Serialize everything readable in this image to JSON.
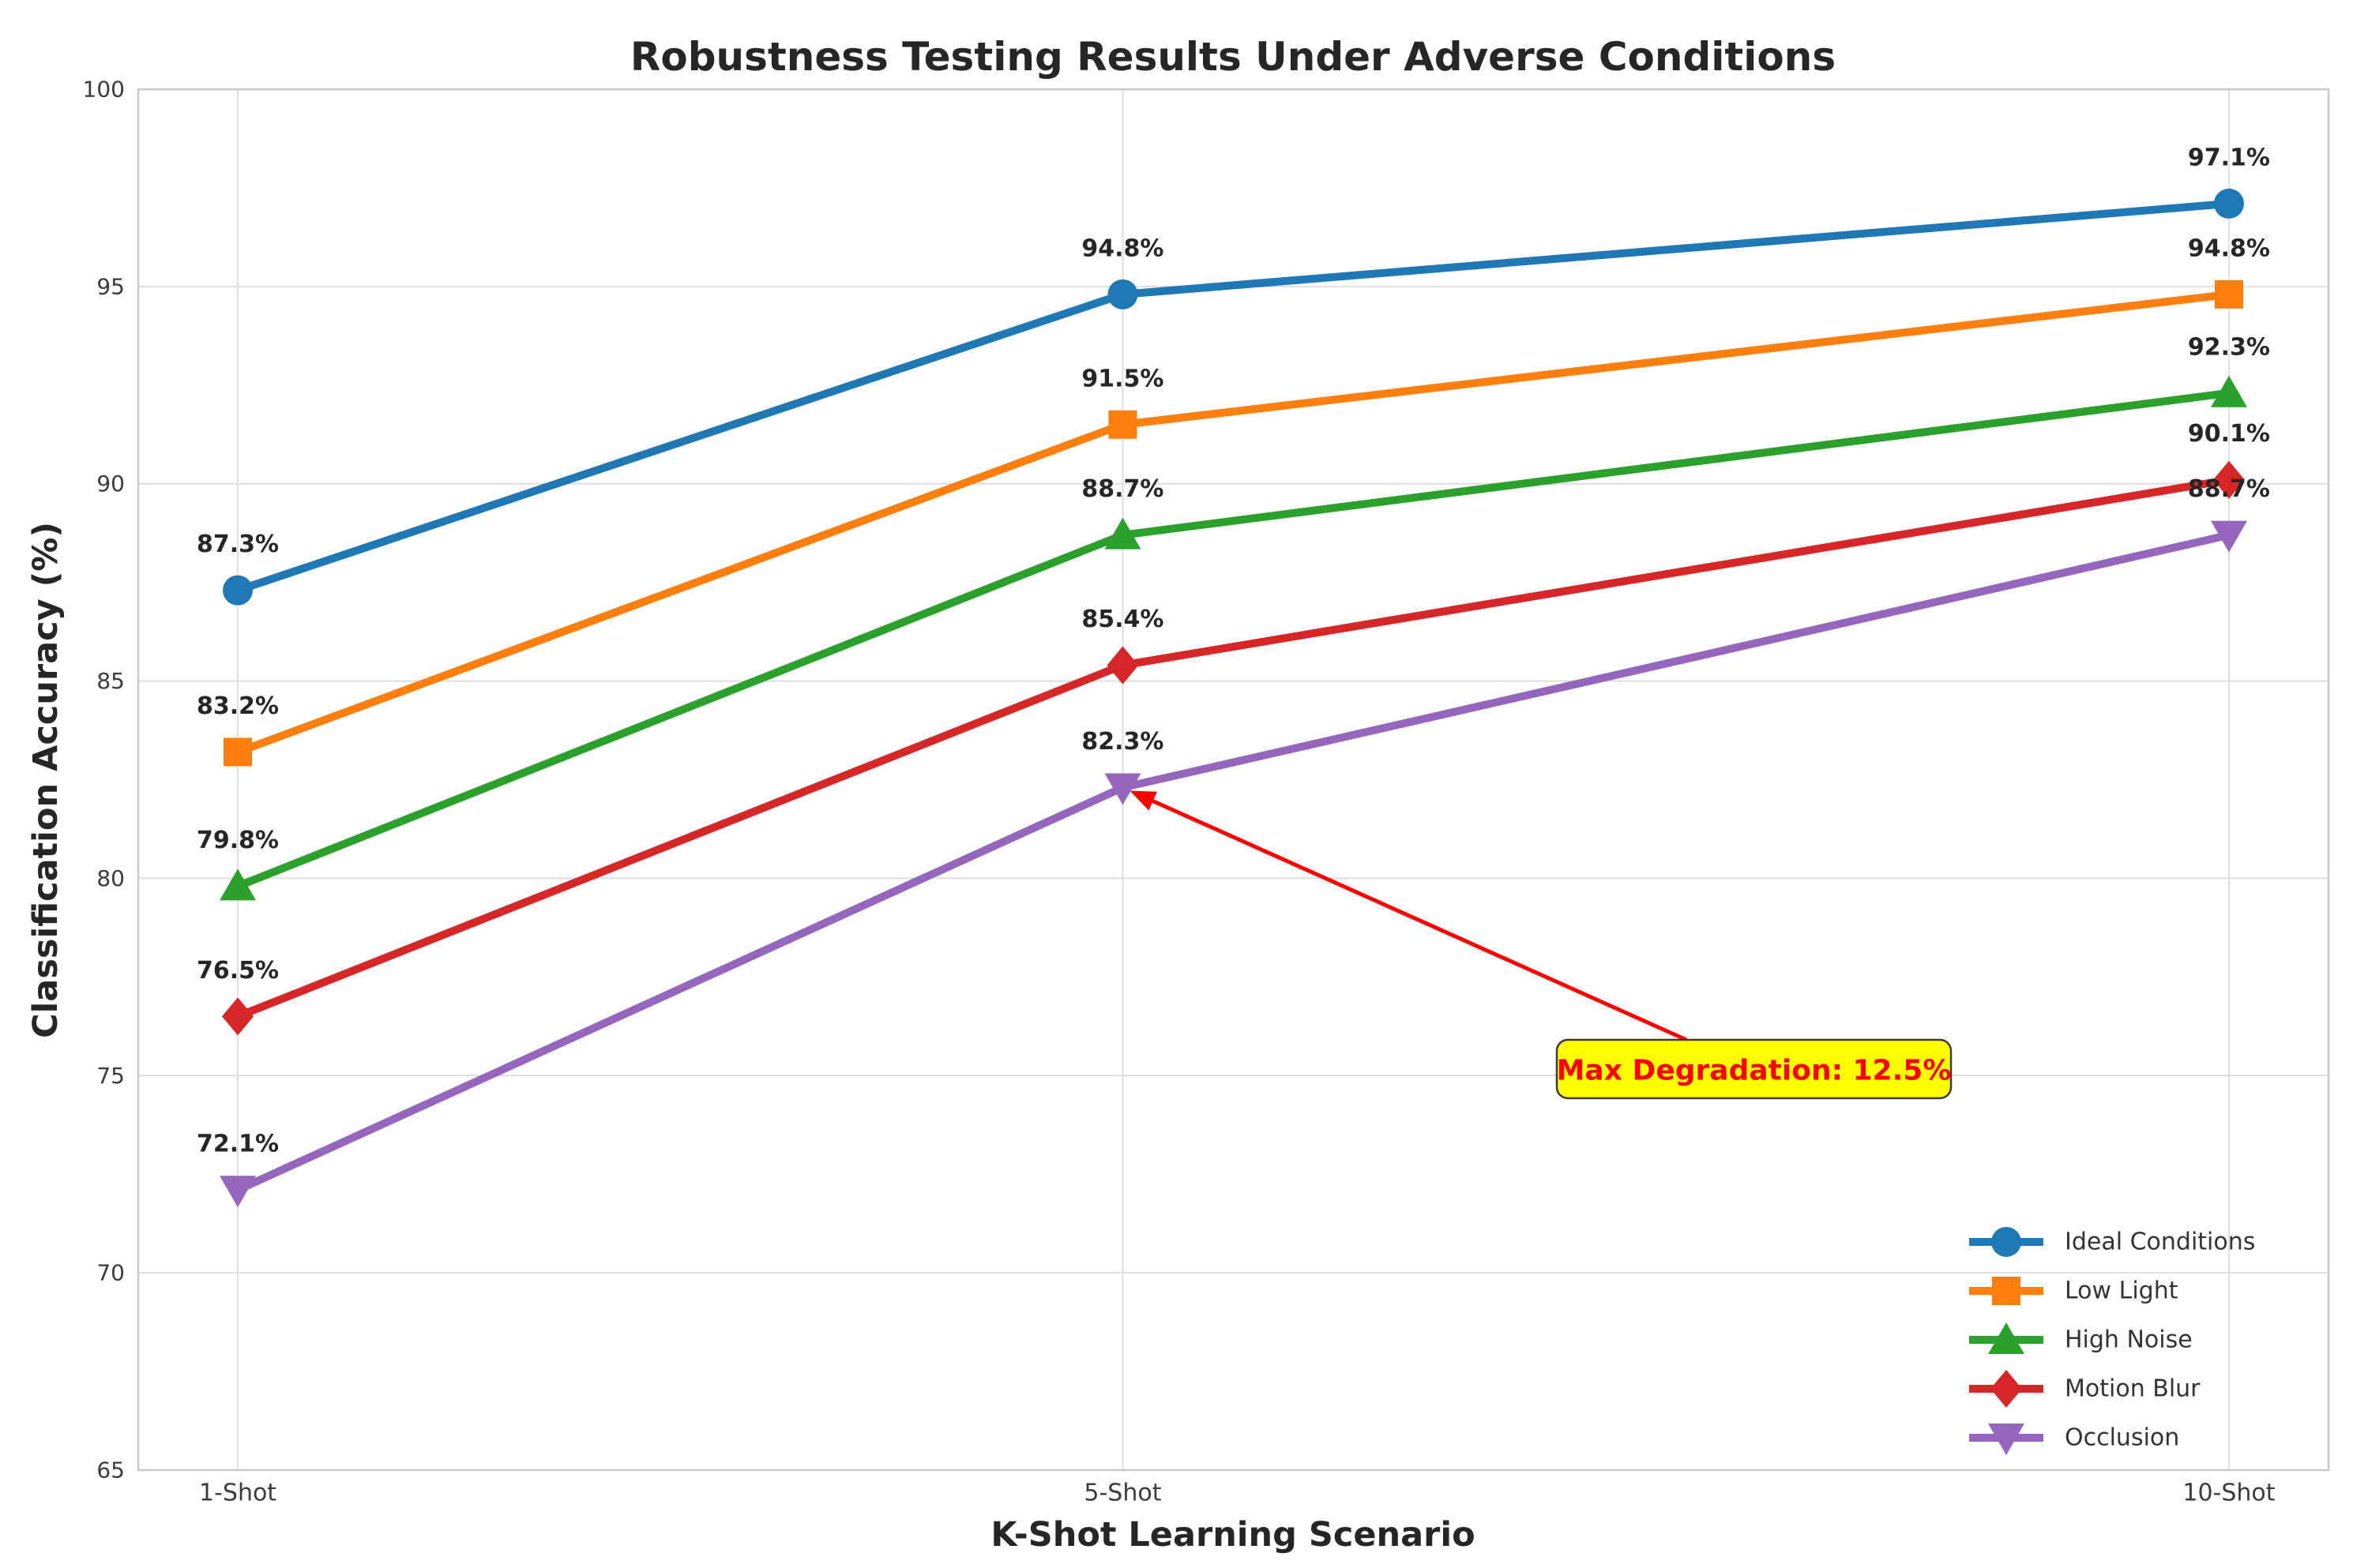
{
  "chart_data": {
    "type": "line",
    "title": "Robustness Testing Results Under Adverse Conditions",
    "xlabel": "K-Shot Learning Scenario",
    "ylabel": "Classification Accuracy (%)",
    "x": [
      1,
      5,
      10
    ],
    "x_tick_labels": [
      "1-Shot",
      "5-Shot",
      "10-Shot"
    ],
    "xlim": [
      0.55,
      10.45
    ],
    "ylim": [
      65,
      100
    ],
    "yticks": [
      65,
      70,
      75,
      80,
      85,
      90,
      95,
      100
    ],
    "ytick_labels": [
      "65",
      "70",
      "75",
      "80",
      "85",
      "90",
      "95",
      "100"
    ],
    "grid": true,
    "legend_position": "lower right",
    "series": [
      {
        "name": "Ideal Conditions",
        "color": "#1f77b4",
        "marker": "circle",
        "values": [
          87.3,
          94.8,
          97.1
        ],
        "point_labels": [
          "87.3%",
          "94.8%",
          "97.1%"
        ]
      },
      {
        "name": "Low Light",
        "color": "#ff7f0e",
        "marker": "square",
        "values": [
          83.2,
          91.5,
          94.8
        ],
        "point_labels": [
          "83.2%",
          "91.5%",
          "94.8%"
        ]
      },
      {
        "name": "High Noise",
        "color": "#2ca02c",
        "marker": "triangle-up",
        "values": [
          79.8,
          88.7,
          92.3
        ],
        "point_labels": [
          "79.8%",
          "88.7%",
          "92.3%"
        ]
      },
      {
        "name": "Motion Blur",
        "color": "#d62728",
        "marker": "diamond",
        "values": [
          76.5,
          85.4,
          90.1
        ],
        "point_labels": [
          "76.5%",
          "85.4%",
          "90.1%"
        ]
      },
      {
        "name": "Occlusion",
        "color": "#9467bd",
        "marker": "triangle-down",
        "values": [
          72.1,
          82.3,
          88.7
        ],
        "point_labels": [
          "72.1%",
          "82.3%",
          "88.7%"
        ]
      }
    ],
    "annotation": {
      "text": "Max Degradation: 12.5%",
      "target_series": "Occlusion",
      "target_x": 5,
      "target_value": 82.3,
      "box_fill": "#ffff00",
      "box_border": "#3a3a3a",
      "text_color": "#ff0000",
      "arrow_color": "#ff0000"
    }
  }
}
